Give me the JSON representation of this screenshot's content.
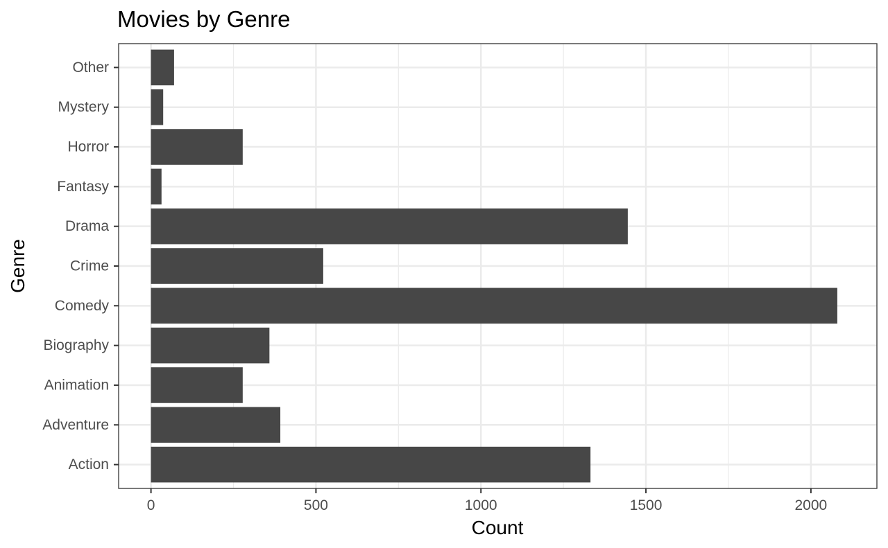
{
  "chart_data": {
    "type": "bar",
    "orientation": "horizontal",
    "title": "Movies by Genre",
    "xlabel": "Count",
    "ylabel": "Genre",
    "categories": [
      "Action",
      "Adventure",
      "Animation",
      "Biography",
      "Comedy",
      "Crime",
      "Drama",
      "Fantasy",
      "Horror",
      "Mystery",
      "Other"
    ],
    "values": [
      1332,
      392,
      278,
      359,
      2080,
      522,
      1445,
      32,
      278,
      37,
      70
    ],
    "xlim": [
      -98,
      2200
    ],
    "xticks": [
      0,
      500,
      1000,
      1500,
      2000
    ],
    "x_tick_labels": [
      "0",
      "500",
      "1000",
      "1500",
      "2000"
    ],
    "grid": true,
    "legend": "none",
    "colors": {
      "bar": "#474747",
      "panel_background": "#ffffff",
      "grid": "#ebebeb",
      "border": "#333333",
      "tick_label": "#4d4d4d"
    }
  }
}
